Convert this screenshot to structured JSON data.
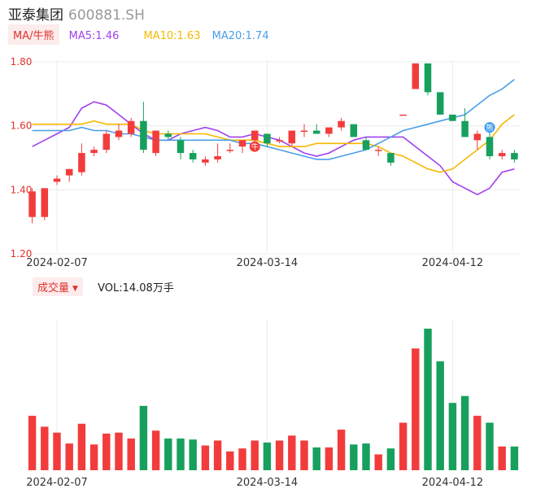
{
  "header": {
    "name": "亚泰集团",
    "code": "600881.SH"
  },
  "ma_legend": {
    "toggle_label": "MA/牛熊",
    "ma5": "MA5:1.46",
    "ma10": "MA10:1.63",
    "ma20": "MA20:1.74",
    "colors": {
      "ma5": "#a040f0",
      "ma10": "#f5b800",
      "ma20": "#4a9eea"
    }
  },
  "volume_legend": {
    "toggle_label": "成交量",
    "vol_text": "VOL:14.08万手"
  },
  "colors": {
    "up": "#f23c3c",
    "down": "#17a05d"
  },
  "chart_data": {
    "type": "candlestick",
    "y_ticks": [
      "1.80",
      "1.60",
      "1.40",
      "1.20"
    ],
    "ylim": [
      1.2,
      1.8
    ],
    "x_tick_labels": [
      {
        "label": "2024-02-07",
        "index": 2
      },
      {
        "label": "2024-03-14",
        "index": 19
      },
      {
        "label": "2024-04-12",
        "index": 34
      }
    ],
    "candles": [
      {
        "o": 1.31,
        "h": 1.4,
        "l": 1.29,
        "c": 1.39
      },
      {
        "o": 1.31,
        "h": 1.4,
        "l": 1.3,
        "c": 1.4
      },
      {
        "o": 1.42,
        "h": 1.44,
        "l": 1.41,
        "c": 1.43
      },
      {
        "o": 1.44,
        "h": 1.46,
        "l": 1.42,
        "c": 1.46
      },
      {
        "o": 1.45,
        "h": 1.54,
        "l": 1.44,
        "c": 1.51
      },
      {
        "o": 1.51,
        "h": 1.53,
        "l": 1.5,
        "c": 1.52
      },
      {
        "o": 1.52,
        "h": 1.58,
        "l": 1.51,
        "c": 1.57
      },
      {
        "o": 1.56,
        "h": 1.6,
        "l": 1.55,
        "c": 1.58
      },
      {
        "o": 1.57,
        "h": 1.62,
        "l": 1.56,
        "c": 1.61
      },
      {
        "o": 1.61,
        "h": 1.67,
        "l": 1.51,
        "c": 1.52
      },
      {
        "o": 1.51,
        "h": 1.58,
        "l": 1.5,
        "c": 1.58
      },
      {
        "o": 1.57,
        "h": 1.58,
        "l": 1.55,
        "c": 1.56
      },
      {
        "o": 1.55,
        "h": 1.56,
        "l": 1.49,
        "c": 1.51
      },
      {
        "o": 1.51,
        "h": 1.52,
        "l": 1.48,
        "c": 1.49
      },
      {
        "o": 1.48,
        "h": 1.5,
        "l": 1.47,
        "c": 1.49
      },
      {
        "o": 1.49,
        "h": 1.54,
        "l": 1.48,
        "c": 1.5
      },
      {
        "o": 1.52,
        "h": 1.54,
        "l": 1.51,
        "c": 1.52
      },
      {
        "o": 1.53,
        "h": 1.55,
        "l": 1.51,
        "c": 1.55
      },
      {
        "o": 1.55,
        "h": 1.58,
        "l": 1.54,
        "c": 1.58
      },
      {
        "o": 1.57,
        "h": 1.57,
        "l": 1.53,
        "c": 1.54
      },
      {
        "o": 1.55,
        "h": 1.56,
        "l": 1.54,
        "c": 1.55
      },
      {
        "o": 1.54,
        "h": 1.58,
        "l": 1.53,
        "c": 1.58
      },
      {
        "o": 1.58,
        "h": 1.6,
        "l": 1.56,
        "c": 1.58
      },
      {
        "o": 1.58,
        "h": 1.6,
        "l": 1.57,
        "c": 1.57
      },
      {
        "o": 1.57,
        "h": 1.59,
        "l": 1.56,
        "c": 1.59
      },
      {
        "o": 1.59,
        "h": 1.62,
        "l": 1.58,
        "c": 1.61
      },
      {
        "o": 1.6,
        "h": 1.6,
        "l": 1.56,
        "c": 1.56
      },
      {
        "o": 1.55,
        "h": 1.56,
        "l": 1.52,
        "c": 1.52
      },
      {
        "o": 1.52,
        "h": 1.53,
        "l": 1.5,
        "c": 1.52
      },
      {
        "o": 1.51,
        "h": 1.51,
        "l": 1.47,
        "c": 1.48
      },
      {
        "o": 1.63,
        "h": 1.63,
        "l": 1.63,
        "c": 1.63
      },
      {
        "o": 1.71,
        "h": 1.79,
        "l": 1.71,
        "c": 1.79
      },
      {
        "o": 1.79,
        "h": 1.79,
        "l": 1.69,
        "c": 1.7
      },
      {
        "o": 1.7,
        "h": 1.7,
        "l": 1.63,
        "c": 1.63
      },
      {
        "o": 1.63,
        "h": 1.63,
        "l": 1.61,
        "c": 1.61
      },
      {
        "o": 1.61,
        "h": 1.65,
        "l": 1.56,
        "c": 1.56
      },
      {
        "o": 1.55,
        "h": 1.58,
        "l": 1.52,
        "c": 1.57
      },
      {
        "o": 1.56,
        "h": 1.58,
        "l": 1.49,
        "c": 1.5
      },
      {
        "o": 1.5,
        "h": 1.52,
        "l": 1.49,
        "c": 1.51
      },
      {
        "o": 1.51,
        "h": 1.52,
        "l": 1.48,
        "c": 1.49
      }
    ],
    "ma5": [
      1.53,
      1.55,
      1.57,
      1.59,
      1.65,
      1.67,
      1.66,
      1.63,
      1.6,
      1.57,
      1.55,
      1.55,
      1.57,
      1.58,
      1.59,
      1.58,
      1.56,
      1.56,
      1.57,
      1.56,
      1.55,
      1.53,
      1.51,
      1.5,
      1.51,
      1.53,
      1.55,
      1.56,
      1.56,
      1.56,
      1.56,
      1.53,
      1.5,
      1.47,
      1.42,
      1.4,
      1.38,
      1.4,
      1.45,
      1.46
    ],
    "ma10": [
      1.6,
      1.6,
      1.6,
      1.6,
      1.6,
      1.61,
      1.6,
      1.6,
      1.6,
      1.58,
      1.57,
      1.57,
      1.57,
      1.57,
      1.57,
      1.56,
      1.55,
      1.55,
      1.55,
      1.54,
      1.53,
      1.53,
      1.53,
      1.54,
      1.54,
      1.54,
      1.54,
      1.54,
      1.53,
      1.51,
      1.5,
      1.48,
      1.46,
      1.45,
      1.46,
      1.49,
      1.52,
      1.55,
      1.6,
      1.63
    ],
    "ma20": [
      1.58,
      1.58,
      1.58,
      1.58,
      1.59,
      1.58,
      1.58,
      1.57,
      1.57,
      1.56,
      1.55,
      1.55,
      1.55,
      1.55,
      1.55,
      1.55,
      1.55,
      1.54,
      1.54,
      1.53,
      1.52,
      1.51,
      1.5,
      1.49,
      1.49,
      1.5,
      1.51,
      1.52,
      1.54,
      1.56,
      1.58,
      1.59,
      1.6,
      1.61,
      1.62,
      1.63,
      1.66,
      1.69,
      1.71,
      1.74
    ],
    "volumes": [
      55,
      44,
      38,
      27,
      47,
      26,
      37,
      38,
      32,
      65,
      40,
      32,
      32,
      31,
      25,
      30,
      19,
      22,
      30,
      28,
      30,
      35,
      30,
      23,
      23,
      41,
      26,
      27,
      16,
      22,
      48,
      123,
      143,
      110,
      68,
      75,
      55,
      48,
      24,
      24
    ],
    "vol_max": 143,
    "markers": [
      {
        "label": "牛",
        "index": 18,
        "price": 1.53,
        "color": "#f23c3c"
      },
      {
        "label": "熊",
        "index": 37,
        "price": 1.59,
        "color": "#3b9bf0"
      }
    ]
  }
}
